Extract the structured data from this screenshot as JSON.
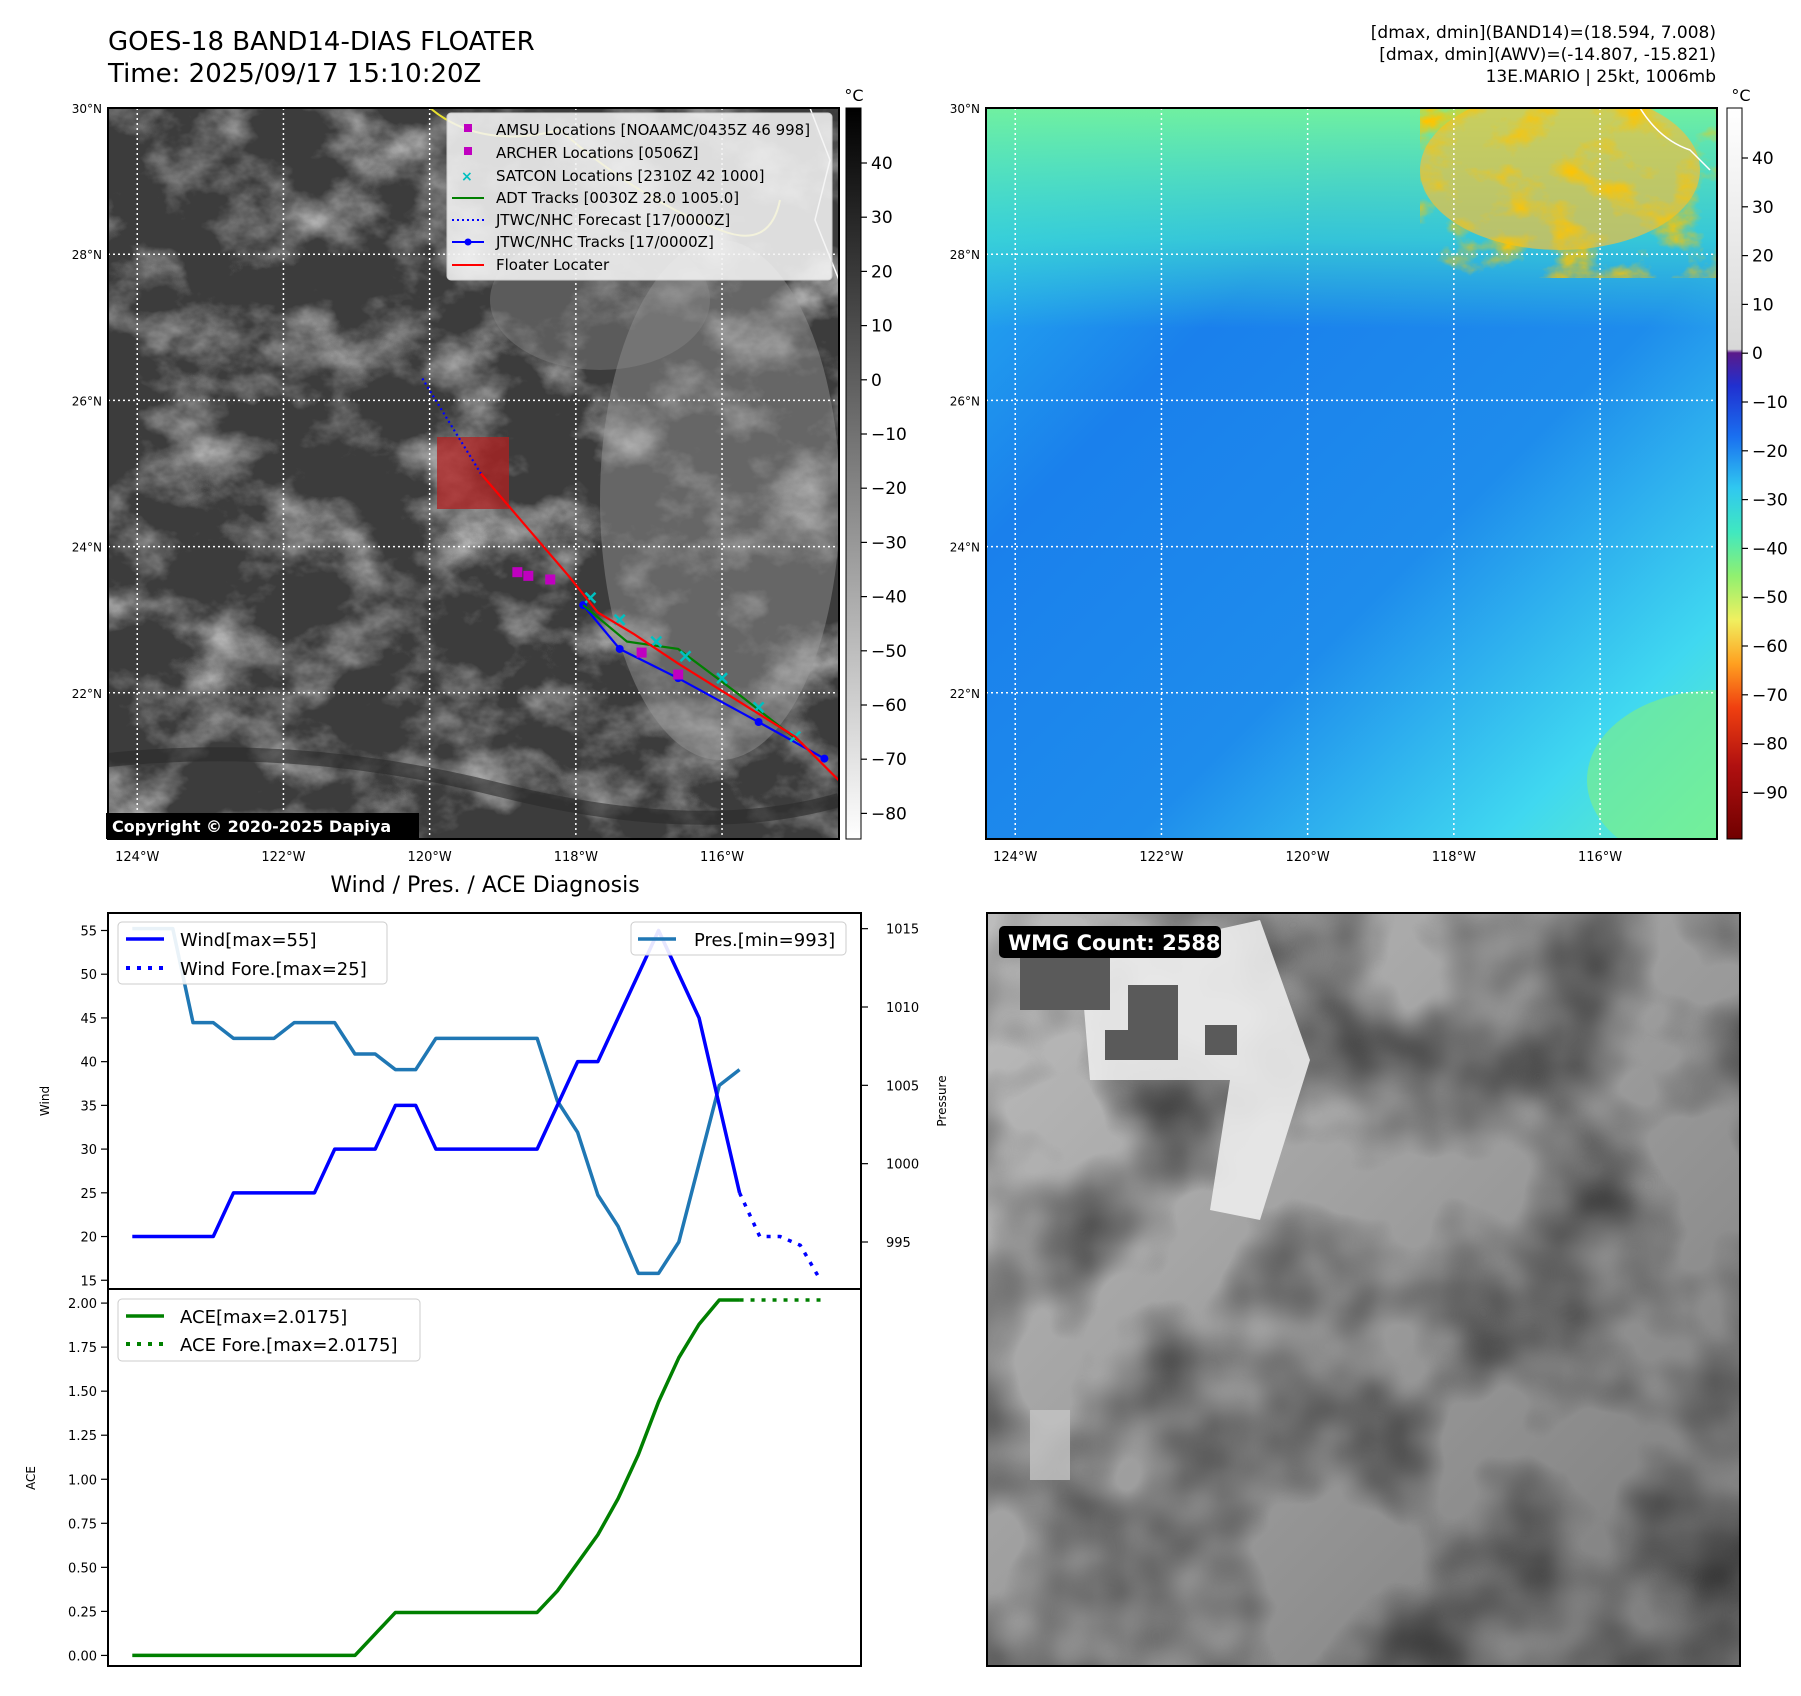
{
  "header": {
    "title": "GOES-18 BAND14-DIAS FLOATER",
    "time": "Time: 2025/09/17 15:10:20Z",
    "stats_band14": "[dmax, dmin](BAND14)=(18.594, 7.008)",
    "stats_awv": "[dmax, dmin](AWV)=(-14.807, -15.821)",
    "storm_info": "13E.MARIO | 25kt, 1006mb"
  },
  "colors": {
    "floater": "#ff0000",
    "jtwc": "#0000ff",
    "adt": "#008000",
    "satcon": "#00c0c0",
    "amsu": "#c000c0",
    "wind": "#0000ff",
    "pressure": "#1f77b4",
    "ace": "#008000"
  },
  "map": {
    "lon_labels": [
      "124°W",
      "122°W",
      "120°W",
      "118°W",
      "116°W"
    ],
    "lat_labels": [
      "30°N",
      "28°N",
      "26°N",
      "24°N",
      "22°N"
    ],
    "copyright": "Copyright © 2020-2025 Dapiya",
    "legend": [
      {
        "label": "AMSU Locations [NOAAMC/0435Z 46 998]",
        "icon": "square-marker"
      },
      {
        "label": "ARCHER Locations [0506Z]",
        "icon": "square-marker"
      },
      {
        "label": "SATCON Locations [2310Z 42 1000]",
        "icon": "x-marker"
      },
      {
        "label": "ADT Tracks [0030Z 28.0 1005.0]",
        "icon": "solid-line"
      },
      {
        "label": "JTWC/NHC Forecast [17/0000Z]",
        "icon": "dotted-line"
      },
      {
        "label": "JTWC/NHC Tracks [17/0000Z]",
        "icon": "line-dot"
      },
      {
        "label": "Floater Locater",
        "icon": "solid-line"
      }
    ]
  },
  "colorbar_left": {
    "unit": "°C",
    "ticks": [
      "40",
      "30",
      "20",
      "10",
      "0",
      "−10",
      "−20",
      "−30",
      "−40",
      "−50",
      "−60",
      "−70",
      "−80"
    ]
  },
  "colorbar_right": {
    "unit": "°C",
    "ticks": [
      "40",
      "30",
      "20",
      "10",
      "0",
      "−10",
      "−20",
      "−30",
      "−40",
      "−50",
      "−60",
      "−70",
      "−80",
      "−90"
    ]
  },
  "diagnosis": {
    "title": "Wind / Pres. / ACE Diagnosis",
    "wind_label": "Wind",
    "pressure_label": "Pressure",
    "ace_label": "ACE",
    "wind_legend": "Wind[max=55]",
    "wind_fore_legend": "Wind Fore.[max=25]",
    "pres_legend": "Pres.[min=993]",
    "ace_legend": "ACE[max=2.0175]",
    "ace_fore_legend": "ACE Fore.[max=2.0175]",
    "wind_ticks": [
      "15",
      "20",
      "25",
      "30",
      "35",
      "40",
      "45",
      "50",
      "55"
    ],
    "pressure_ticks": [
      "995",
      "1000",
      "1005",
      "1010",
      "1015"
    ],
    "ace_ticks": [
      "0.00",
      "0.25",
      "0.50",
      "0.75",
      "1.00",
      "1.25",
      "1.50",
      "1.75",
      "2.00"
    ]
  },
  "wmg": {
    "label": "WMG Count: 2588"
  },
  "chart_data": [
    {
      "type": "line",
      "title": "",
      "ylabel": "Wind",
      "ylim": [
        14,
        57
      ],
      "series": [
        {
          "name": "Wind[max=55]",
          "x": [
            0,
            1,
            2,
            3,
            4,
            5,
            6,
            7,
            8,
            9,
            10,
            11,
            12,
            13,
            14,
            15,
            16,
            17,
            18,
            19,
            20,
            21,
            22,
            23,
            24,
            25,
            26,
            27,
            28,
            29,
            30
          ],
          "values": [
            20,
            20,
            20,
            20,
            20,
            25,
            25,
            25,
            25,
            25,
            30,
            30,
            30,
            35,
            35,
            30,
            30,
            30,
            30,
            30,
            30,
            35,
            40,
            40,
            45,
            50,
            55,
            50,
            45,
            35,
            25
          ]
        },
        {
          "name": "Wind Fore.[max=25]",
          "x": [
            30,
            31,
            32,
            33,
            34
          ],
          "values": [
            25,
            20,
            20,
            19,
            15
          ]
        }
      ]
    },
    {
      "type": "line",
      "title": "",
      "ylabel": "Pressure",
      "ylim": [
        992,
        1016
      ],
      "series": [
        {
          "name": "Pres.[min=993]",
          "x": [
            0,
            1,
            2,
            3,
            4,
            5,
            6,
            7,
            8,
            9,
            10,
            11,
            12,
            13,
            14,
            15,
            16,
            17,
            18,
            19,
            20,
            21,
            22,
            23,
            24,
            25,
            26,
            27,
            28,
            29,
            30
          ],
          "values": [
            1015,
            1015,
            1015,
            1009,
            1009,
            1008,
            1008,
            1008,
            1009,
            1009,
            1009,
            1007,
            1007,
            1006,
            1006,
            1008,
            1008,
            1008,
            1008,
            1008,
            1008,
            1004,
            1002,
            998,
            996,
            993,
            993,
            995,
            1000,
            1005,
            1006
          ]
        }
      ]
    },
    {
      "type": "line",
      "title": "",
      "ylabel": "ACE",
      "ylim": [
        -0.06,
        2.08
      ],
      "series": [
        {
          "name": "ACE[max=2.0175]",
          "x": [
            0,
            1,
            2,
            3,
            4,
            5,
            6,
            7,
            8,
            9,
            10,
            11,
            12,
            13,
            14,
            15,
            16,
            17,
            18,
            19,
            20,
            21,
            22,
            23,
            24,
            25,
            26,
            27,
            28,
            29,
            30
          ],
          "values": [
            0,
            0,
            0,
            0,
            0,
            0,
            0,
            0,
            0,
            0,
            0,
            0,
            0.122,
            0.244,
            0.244,
            0.244,
            0.244,
            0.244,
            0.244,
            0.244,
            0.244,
            0.366,
            0.525,
            0.685,
            0.89,
            1.14,
            1.44,
            1.69,
            1.88,
            2.0175,
            2.0175
          ]
        },
        {
          "name": "ACE Fore.[max=2.0175]",
          "x": [
            30,
            31,
            32,
            33,
            34
          ],
          "values": [
            2.0175,
            2.0175,
            2.0175,
            2.0175,
            2.0175
          ]
        }
      ]
    },
    {
      "type": "scatter",
      "title": "",
      "xlabel": "",
      "ylabel": "",
      "x_unit": "°E",
      "y_unit": "°N",
      "xlim": [
        -124.4,
        -114.4
      ],
      "ylim": [
        20.0,
        30.0
      ],
      "series": [
        {
          "name": "JTWC/NHC Forecast [17/0000Z]",
          "style": "dotted",
          "x": [
            -120.1,
            -119.3
          ],
          "y": [
            26.3,
            25.0
          ]
        },
        {
          "name": "JTWC/NHC Tracks [17/0000Z]",
          "style": "line-dot",
          "x": [
            -117.9,
            -117.4,
            -116.6,
            -115.5,
            -114.6
          ],
          "y": [
            23.2,
            22.6,
            22.2,
            21.6,
            21.1
          ]
        },
        {
          "name": "ADT Tracks [0030Z 28.0 1005.0]",
          "style": "solid",
          "x": [
            -117.9,
            -117.3,
            -116.6,
            -115.8,
            -114.9
          ],
          "y": [
            23.2,
            22.7,
            22.6,
            22.0,
            21.3
          ]
        },
        {
          "name": "SATCON Locations [2310Z 42 1000]",
          "style": "x",
          "x": [
            -117.8,
            -117.4,
            -116.9,
            -116.5,
            -116.0,
            -115.5,
            -115.0
          ],
          "y": [
            23.3,
            23.0,
            22.7,
            22.5,
            22.2,
            21.8,
            21.4
          ]
        },
        {
          "name": "AMSU Locations [NOAAMC/0435Z 46 998]",
          "style": "square",
          "x": [
            -118.8,
            -118.65,
            -118.35
          ],
          "y": [
            23.65,
            23.6,
            23.55
          ]
        },
        {
          "name": "ARCHER Locations [0506Z]",
          "style": "square",
          "x": [
            -117.1,
            -116.6
          ],
          "y": [
            22.55,
            22.25
          ]
        },
        {
          "name": "Floater Locater",
          "style": "solid",
          "x": [
            -119.3,
            -118.7,
            -118.1,
            -117.7,
            -117.2,
            -116.6,
            -115.8,
            -115.0,
            -114.4
          ],
          "y": [
            25.0,
            24.3,
            23.6,
            23.1,
            22.8,
            22.4,
            21.9,
            21.4,
            20.8
          ]
        }
      ]
    }
  ]
}
